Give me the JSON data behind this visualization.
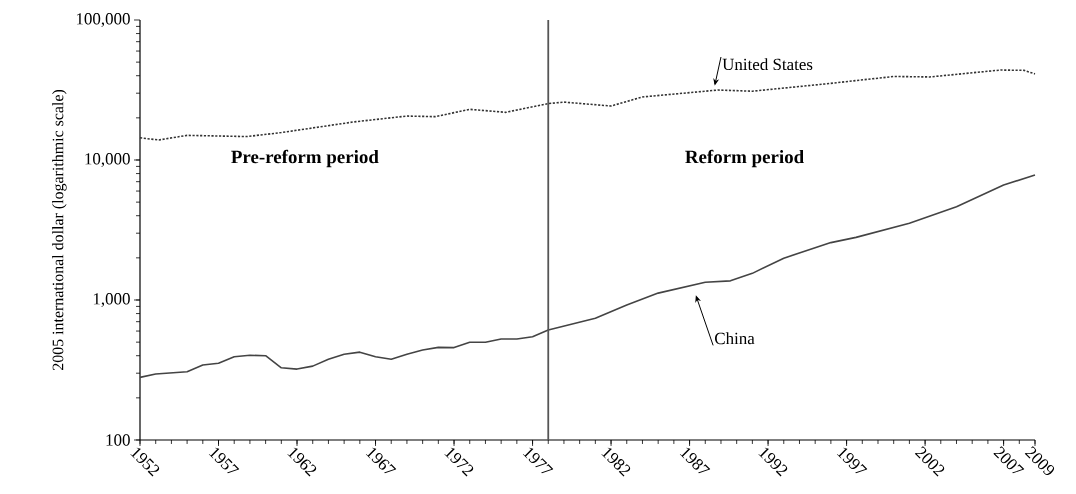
{
  "chart_data": {
    "type": "line",
    "ylabel": "2005 international dollar (logarithmic scale)",
    "log": "y",
    "xlim": [
      1952,
      2009
    ],
    "xticks": [
      1952,
      1957,
      1962,
      1967,
      1972,
      1977,
      1982,
      1987,
      1992,
      1997,
      2002,
      2007,
      2009
    ],
    "ylim": [
      100,
      100000
    ],
    "yticks": [
      {
        "value": 100,
        "label": "100"
      },
      {
        "value": 1000,
        "label": "1,000"
      },
      {
        "value": 10000,
        "label": "10,000"
      },
      {
        "value": 100000,
        "label": "100,000"
      }
    ],
    "grid": false,
    "marker": "none",
    "series": [
      {
        "name": "United States",
        "color": "#333333",
        "line_style": "dotted",
        "x": [
          1952,
          1953.2,
          1955,
          1958.8,
          1961,
          1965.6,
          1969,
          1970.8,
          1973,
          1975.3,
          1978,
          1979,
          1982,
          1984,
          1988.8,
          1991,
          1995.6,
          2000,
          2002.3,
          2006.8,
          2008.3,
          2009
        ],
        "values": [
          14400,
          13900,
          15000,
          14700,
          15700,
          18700,
          20600,
          20400,
          23000,
          21900,
          25300,
          25900,
          24300,
          28200,
          31600,
          31000,
          34900,
          39500,
          39200,
          43900,
          43700,
          41200
        ]
      },
      {
        "name": "China",
        "color": "#444444",
        "line_style": "solid",
        "x": [
          1952,
          1953,
          1955,
          1956,
          1957,
          1958,
          1959,
          1960,
          1961,
          1962,
          1963,
          1964,
          1965,
          1966,
          1967,
          1968,
          1969,
          1970,
          1971,
          1972,
          1973,
          1974,
          1975,
          1976,
          1977,
          1978,
          1981,
          1983,
          1985,
          1988,
          1989.6,
          1991,
          1993,
          1996,
          1997.6,
          2001,
          2004,
          2007,
          2009
        ],
        "values": [
          280,
          296,
          307,
          343,
          353,
          393,
          403,
          400,
          328,
          321,
          337,
          377,
          410,
          424,
          393,
          377,
          410,
          439,
          459,
          457,
          499,
          499,
          526,
          526,
          547,
          610,
          740,
          920,
          1120,
          1340,
          1370,
          1550,
          1990,
          2570,
          2800,
          3530,
          4640,
          6630,
          7810
        ]
      }
    ],
    "ref_lines": [
      {
        "axis": "x",
        "value": 1978,
        "color": "#555555",
        "line_style": "solid"
      }
    ],
    "annotations": [
      "Pre-reform period",
      "Reform period"
    ]
  }
}
